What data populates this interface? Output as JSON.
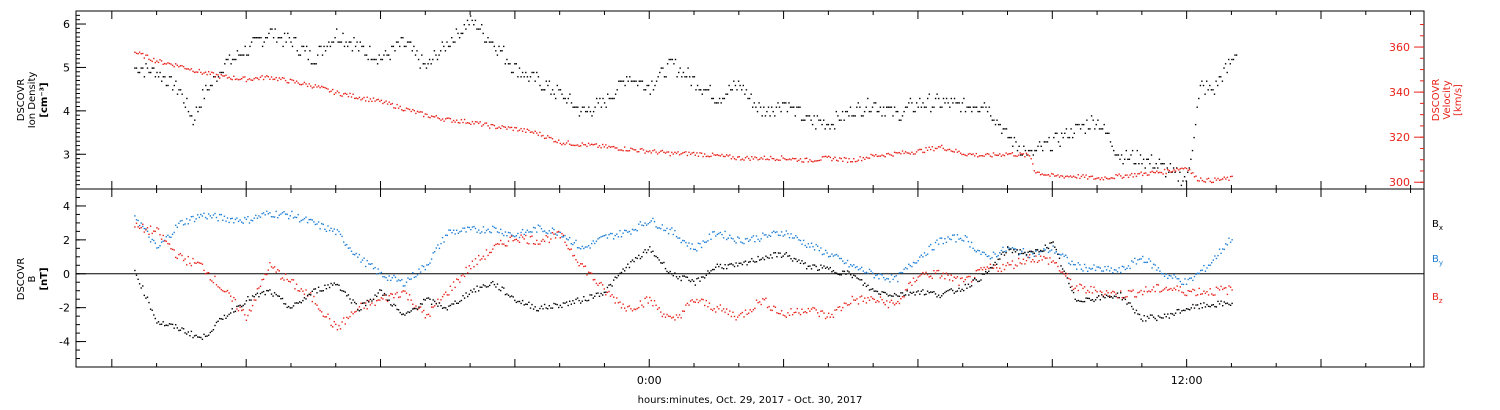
{
  "chart_data": [
    {
      "type": "scatter",
      "panel": "top",
      "ylabel_left": [
        "DSCOVR",
        "Ion Density",
        "[cm⁻³]"
      ],
      "ylabel_right": [
        "DSCOVR",
        "Velocity",
        "[km/s]"
      ],
      "ylim_left": [
        2.2,
        6.3
      ],
      "ylim_right": [
        297,
        376
      ],
      "yticks_left": [
        "3",
        "4",
        "5",
        "6"
      ],
      "yticks_right": [
        "300",
        "320",
        "340",
        "360"
      ],
      "colors": {
        "density": "#000000",
        "velocity": "#e8231b"
      },
      "series": [
        {
          "name": "Ion Density",
          "color": "#000000",
          "hours": [
            -11.5,
            -11.0,
            -10.5,
            -10.2,
            -10.0,
            -9.5,
            -9.0,
            -8.5,
            -8.0,
            -7.5,
            -7.0,
            -6.5,
            -6.0,
            -5.5,
            -5.0,
            -4.5,
            -4.0,
            -3.5,
            -3.0,
            -2.5,
            -2.0,
            -1.5,
            -1.0,
            -0.5,
            0.0,
            0.5,
            1.0,
            1.5,
            2.0,
            2.5,
            3.0,
            3.5,
            4.0,
            4.5,
            5.0,
            5.5,
            6.0,
            6.5,
            7.0,
            7.5,
            8.0,
            8.5,
            9.0,
            9.5,
            10.0,
            10.5,
            11.0,
            11.5,
            11.8,
            12.0,
            12.3,
            12.6,
            12.9,
            13.1
          ],
          "values": [
            5.0,
            4.9,
            4.5,
            3.8,
            4.3,
            5.1,
            5.4,
            5.8,
            5.6,
            5.2,
            5.8,
            5.5,
            5.2,
            5.6,
            5.0,
            5.6,
            6.1,
            5.6,
            5.0,
            4.7,
            4.4,
            4.0,
            4.2,
            4.8,
            4.6,
            5.1,
            4.7,
            4.3,
            4.6,
            4.0,
            4.2,
            3.8,
            3.7,
            4.0,
            4.2,
            3.9,
            4.2,
            4.2,
            4.1,
            4.2,
            3.4,
            3.0,
            3.3,
            3.6,
            3.8,
            3.0,
            2.9,
            2.7,
            2.5,
            2.4,
            4.6,
            4.5,
            5.0,
            5.4
          ]
        },
        {
          "name": "Velocity",
          "color": "#e8231b",
          "hours": [
            -11.5,
            -11.0,
            -10.5,
            -10.0,
            -9.5,
            -9.0,
            -8.5,
            -8.0,
            -7.5,
            -7.0,
            -6.5,
            -6.0,
            -5.5,
            -5.0,
            -4.5,
            -4.0,
            -3.5,
            -3.0,
            -2.5,
            -2.0,
            -1.5,
            -1.0,
            -0.5,
            0.0,
            0.5,
            1.0,
            1.5,
            2.0,
            2.5,
            3.0,
            3.5,
            4.0,
            4.5,
            5.0,
            5.5,
            6.0,
            6.5,
            7.0,
            7.5,
            8.0,
            8.5,
            8.6,
            9.0,
            9.5,
            10.0,
            10.5,
            11.0,
            11.5,
            12.0,
            12.2,
            12.5,
            13.0
          ],
          "values": [
            358,
            354,
            352,
            349,
            347,
            346,
            347,
            345,
            343,
            340,
            338,
            336,
            333,
            330,
            328,
            327,
            325,
            324,
            322,
            318,
            317,
            316,
            315,
            314,
            313,
            313,
            312,
            311,
            311,
            311,
            310,
            311,
            310,
            312,
            313,
            314,
            316,
            313,
            312,
            313,
            312,
            305,
            303,
            303,
            302,
            303,
            304,
            305,
            307,
            302,
            301,
            302
          ]
        }
      ]
    },
    {
      "type": "scatter",
      "panel": "bottom",
      "ylabel": [
        "DSCOVR",
        "B",
        "[nT]"
      ],
      "ylim": [
        -5.5,
        5.0
      ],
      "yticks": [
        "-4",
        "-2",
        "0",
        "2",
        "4"
      ],
      "legend": [
        "Bx",
        "By",
        "Bz"
      ],
      "series": [
        {
          "name": "Bx",
          "color": "#000000",
          "hours": [
            -11.5,
            -11.0,
            -10.5,
            -10.0,
            -9.5,
            -9.0,
            -8.5,
            -8.0,
            -7.5,
            -7.0,
            -6.5,
            -6.0,
            -5.5,
            -5.0,
            -4.5,
            -4.0,
            -3.5,
            -3.0,
            -2.5,
            -2.0,
            -1.5,
            -1.0,
            -0.5,
            0.0,
            0.5,
            1.0,
            1.5,
            2.0,
            2.5,
            3.0,
            3.5,
            4.0,
            4.5,
            5.0,
            5.5,
            6.0,
            6.5,
            7.0,
            7.5,
            8.0,
            8.5,
            9.0,
            9.5,
            10.0,
            10.5,
            11.0,
            11.5,
            12.0,
            12.5,
            13.0
          ],
          "values": [
            0.2,
            -2.8,
            -3.2,
            -3.8,
            -2.5,
            -1.5,
            -1.0,
            -2.0,
            -1.0,
            -0.5,
            -2.0,
            -1.0,
            -2.5,
            -1.5,
            -2.0,
            -1.0,
            -0.5,
            -1.5,
            -2.0,
            -1.8,
            -1.5,
            -1.0,
            0.5,
            1.5,
            0.0,
            -0.5,
            0.5,
            0.5,
            1.0,
            1.2,
            0.5,
            0.3,
            0.0,
            -1.0,
            -1.2,
            -1.0,
            -1.2,
            -0.8,
            0.0,
            1.5,
            1.2,
            1.8,
            -1.5,
            -1.4,
            -1.2,
            -2.6,
            -2.5,
            -2.0,
            -1.8,
            -1.7
          ]
        },
        {
          "name": "By",
          "color": "#1f7fd6",
          "hours": [
            -11.5,
            -11.0,
            -10.5,
            -10.0,
            -9.5,
            -9.0,
            -8.5,
            -8.0,
            -7.5,
            -7.0,
            -6.5,
            -6.0,
            -5.5,
            -5.0,
            -4.5,
            -4.0,
            -3.5,
            -3.0,
            -2.5,
            -2.0,
            -1.5,
            -1.0,
            -0.5,
            0.0,
            0.5,
            1.0,
            1.5,
            2.0,
            2.5,
            3.0,
            3.5,
            4.0,
            4.5,
            5.0,
            5.5,
            6.0,
            6.5,
            7.0,
            7.5,
            8.0,
            8.5,
            9.0,
            9.5,
            10.0,
            10.5,
            11.0,
            11.5,
            12.0,
            12.5,
            13.0
          ],
          "values": [
            3.5,
            1.5,
            3.0,
            3.5,
            3.3,
            3.2,
            3.6,
            3.5,
            3.0,
            2.5,
            1.0,
            0.0,
            -0.5,
            0.5,
            2.5,
            2.6,
            2.7,
            2.3,
            2.7,
            2.5,
            1.5,
            2.2,
            2.5,
            3.2,
            2.5,
            1.5,
            2.5,
            2.0,
            2.2,
            2.5,
            1.8,
            1.2,
            0.5,
            0.0,
            -0.3,
            1.0,
            2.0,
            2.2,
            1.0,
            1.5,
            1.2,
            1.5,
            0.5,
            0.3,
            0.2,
            1.0,
            0.0,
            -0.5,
            0.6,
            2.2
          ]
        },
        {
          "name": "Bz",
          "color": "#e8231b",
          "hours": [
            -11.5,
            -11.0,
            -10.5,
            -10.0,
            -9.5,
            -9.0,
            -8.5,
            -8.0,
            -7.5,
            -7.0,
            -6.5,
            -6.0,
            -5.5,
            -5.0,
            -4.5,
            -4.0,
            -3.5,
            -3.0,
            -2.5,
            -2.0,
            -1.5,
            -1.0,
            -0.5,
            0.0,
            0.5,
            1.0,
            1.5,
            2.0,
            2.5,
            3.0,
            3.5,
            4.0,
            4.5,
            5.0,
            5.5,
            6.0,
            6.5,
            7.0,
            7.5,
            8.0,
            8.5,
            9.0,
            9.5,
            10.0,
            10.5,
            11.0,
            11.5,
            12.0,
            12.5,
            13.0
          ],
          "values": [
            2.8,
            2.5,
            1.0,
            0.5,
            -1.0,
            -2.5,
            0.5,
            -0.5,
            -1.5,
            -3.2,
            -2.0,
            -1.5,
            -1.0,
            -2.5,
            -1.0,
            0.5,
            1.5,
            2.2,
            2.0,
            2.3,
            0.5,
            -1.0,
            -2.0,
            -1.5,
            -2.8,
            -1.5,
            -2.0,
            -2.5,
            -1.5,
            -2.4,
            -2.0,
            -2.5,
            -1.5,
            -1.5,
            -1.8,
            0.0,
            0.0,
            -0.5,
            0.3,
            0.5,
            1.0,
            0.8,
            -0.8,
            -1.0,
            -1.2,
            -1.0,
            -0.8,
            -1.0,
            -1.0,
            -0.9
          ]
        }
      ]
    }
  ],
  "x_axis": {
    "label": "hours:minutes, Oct. 29, 2017 - Oct. 30, 2017",
    "ticklabels": [
      "0:00",
      "12:00"
    ],
    "range_hours": [
      -12.8,
      17.3
    ]
  }
}
